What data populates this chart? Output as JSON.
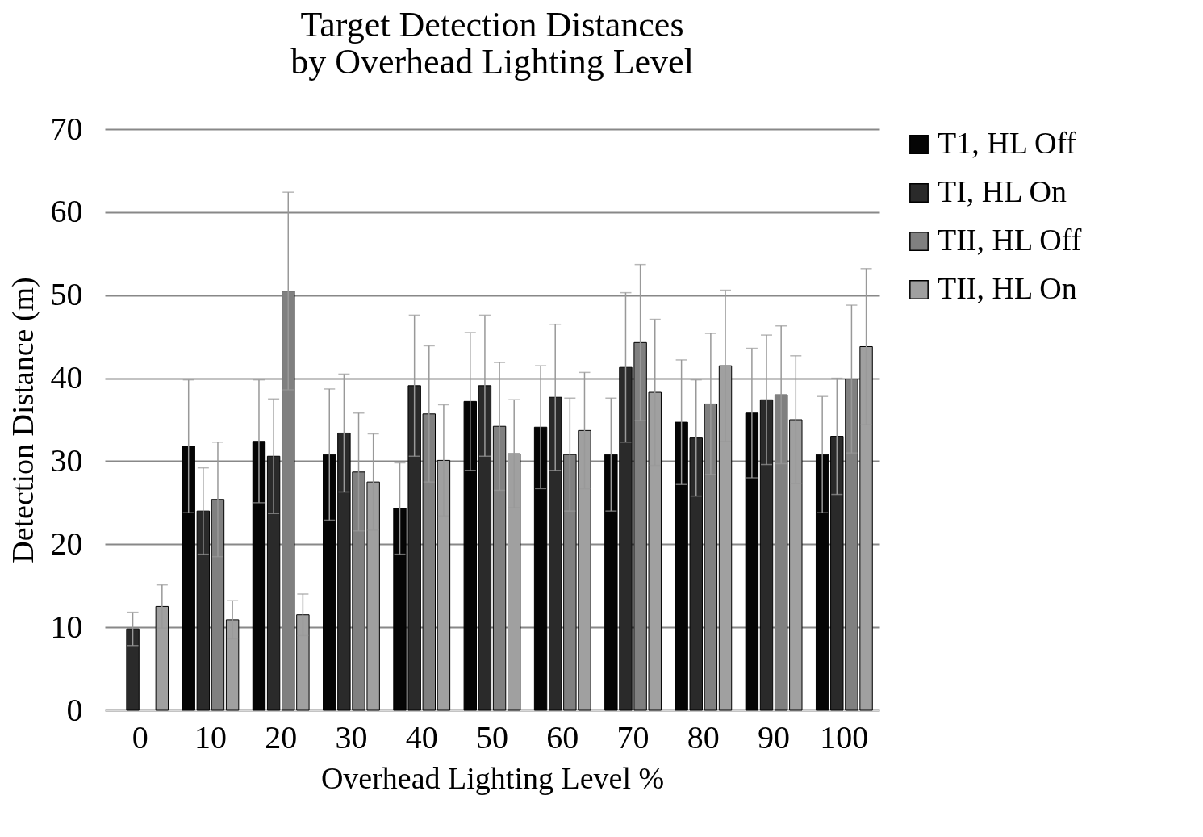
{
  "chart_data": {
    "type": "bar",
    "title": "Target Detection Distances\nby Overhead Lighting Level",
    "xlabel": "Overhead Lighting Level %",
    "ylabel": "Detection Distance (m)",
    "categories": [
      "0",
      "10",
      "20",
      "30",
      "40",
      "50",
      "60",
      "70",
      "80",
      "90",
      "100"
    ],
    "series": [
      {
        "name": "T1, HL Off",
        "color": "#050505",
        "values": [
          null,
          31.8,
          32.4,
          30.8,
          24.3,
          37.2,
          34.1,
          30.8,
          34.7,
          35.8,
          30.8
        ],
        "errors": [
          null,
          8,
          7.4,
          7.9,
          5.5,
          8.3,
          7.4,
          6.8,
          7.5,
          7.8,
          7
        ]
      },
      {
        "name": "TI, HL On",
        "color": "#2a2a2a",
        "values": [
          9.8,
          24,
          30.6,
          33.4,
          39.1,
          39.1,
          37.7,
          41.3,
          32.8,
          37.4,
          33
        ],
        "errors": [
          2,
          5.2,
          6.9,
          7.1,
          8.5,
          8.5,
          8.8,
          9,
          7,
          7.8,
          7
        ]
      },
      {
        "name": "TII, HL Off",
        "color": "#808080",
        "values": [
          null,
          25.4,
          50.5,
          28.7,
          35.7,
          34.2,
          30.8,
          44.3,
          36.9,
          38,
          39.9
        ],
        "errors": [
          null,
          6.9,
          11.9,
          7.1,
          8.2,
          7.7,
          6.8,
          9.4,
          8.5,
          8.3,
          8.9
        ]
      },
      {
        "name": "TII, HL On",
        "color": "#a0a0a0",
        "values": [
          12.5,
          10.9,
          11.5,
          27.5,
          30.1,
          30.9,
          33.7,
          38.3,
          41.5,
          35,
          43.8
        ],
        "errors": [
          2.6,
          2.3,
          2.5,
          5.8,
          6.7,
          6.5,
          7,
          8.8,
          9.1,
          7.7,
          9.4
        ]
      }
    ],
    "ylim": [
      0,
      70
    ],
    "yticks": [
      0,
      10,
      20,
      30,
      40,
      50,
      60,
      70
    ],
    "grid": "y",
    "legend": "right"
  }
}
